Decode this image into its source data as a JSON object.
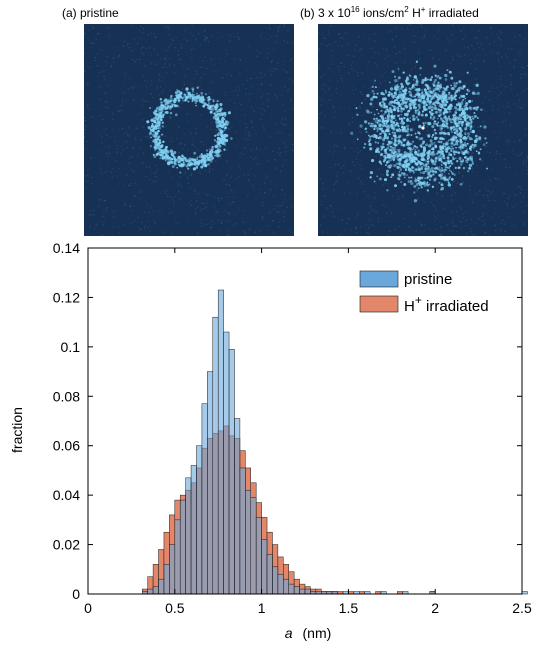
{
  "panels": {
    "a": {
      "prefix": "(a) ",
      "label": "pristine"
    },
    "b": {
      "prefix": "(b) ",
      "dose_base": "3 x 10",
      "dose_exp": "16",
      "dose_unit": " ions/cm",
      "unit_exp": "2",
      "ion": " H",
      "ion_sup": "+",
      "label": " irradiated"
    }
  },
  "colors": {
    "pristine": "#6aa8dc",
    "irradiated": "#e2876a",
    "overlap": "#8a5c4f",
    "panel_bg": "#173154",
    "speckle": "#7fd0f2"
  },
  "chart_data": {
    "type": "bar",
    "xlabel_var": "a",
    "xlabel_unit": "(nm)",
    "ylabel": "fraction",
    "xlim": [
      0,
      2.5
    ],
    "ylim": [
      0,
      0.14
    ],
    "xticks": [
      0,
      0.5,
      1,
      1.5,
      2,
      2.5
    ],
    "yticks": [
      0,
      0.02,
      0.04,
      0.06,
      0.08,
      0.1,
      0.12,
      0.14
    ],
    "grid": false,
    "legend_position": "top-right",
    "bin_width": 0.03125,
    "bin_start": 0.28125,
    "series": [
      {
        "name": "pristine",
        "values": [
          0.0,
          0.001,
          0.002,
          0.003,
          0.006,
          0.012,
          0.02,
          0.03,
          0.038,
          0.047,
          0.052,
          0.06,
          0.077,
          0.09,
          0.112,
          0.123,
          0.106,
          0.099,
          0.071,
          0.051,
          0.042,
          0.039,
          0.031,
          0.022,
          0.016,
          0.011,
          0.008,
          0.006,
          0.004,
          0.003,
          0.002,
          0.002,
          0.001,
          0.001,
          0.001,
          0.001,
          0.001,
          0.0,
          0.001,
          0.0,
          0.001,
          0.0,
          0.001,
          0.0,
          0.0,
          0.001,
          0.0,
          0.0,
          0.0,
          0.001,
          0.0,
          0.0,
          0.0,
          0.0,
          0.001,
          0.0,
          0.0,
          0.0,
          0.0,
          0.0,
          0.0,
          0.0,
          0.0,
          0.0,
          0.0,
          0.0,
          0.0,
          0.0,
          0.0,
          0.0,
          0.0,
          0.001
        ]
      },
      {
        "name": "H+ irradiated",
        "name_base": "H",
        "name_sup": "+",
        "name_rest": " irradiated",
        "values": [
          0.0,
          0.002,
          0.007,
          0.012,
          0.018,
          0.025,
          0.032,
          0.038,
          0.04,
          0.042,
          0.045,
          0.051,
          0.059,
          0.063,
          0.065,
          0.066,
          0.068,
          0.064,
          0.063,
          0.058,
          0.051,
          0.045,
          0.037,
          0.031,
          0.025,
          0.02,
          0.015,
          0.012,
          0.009,
          0.006,
          0.004,
          0.003,
          0.002,
          0.002,
          0.001,
          0.001,
          0.001,
          0.001,
          0.0,
          0.001,
          0.0,
          0.001,
          0.0,
          0.0,
          0.001,
          0.0,
          0.0,
          0.0,
          0.001,
          0.0,
          0.0,
          0.0,
          0.0,
          0.0,
          0.001,
          0.0,
          0.0,
          0.0,
          0.0,
          0.0,
          0.0,
          0.0,
          0.0,
          0.0,
          0.0,
          0.0,
          0.0,
          0.0,
          0.0,
          0.0,
          0.0,
          0.0
        ]
      }
    ]
  }
}
